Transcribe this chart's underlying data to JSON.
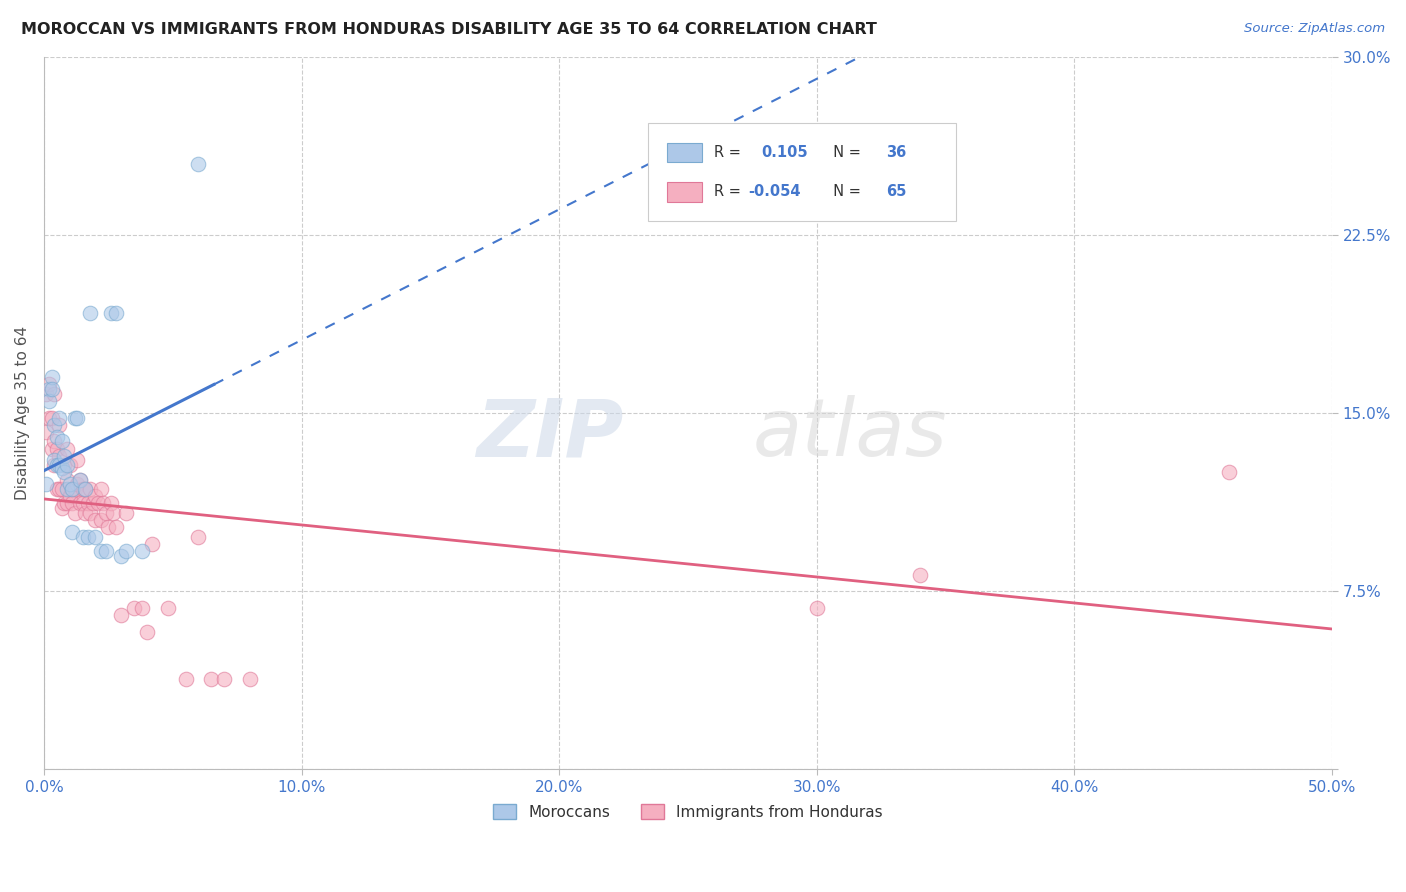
{
  "title": "MOROCCAN VS IMMIGRANTS FROM HONDURAS DISABILITY AGE 35 TO 64 CORRELATION CHART",
  "source": "Source: ZipAtlas.com",
  "ylabel": "Disability Age 35 to 64",
  "xlim": [
    0.0,
    0.5
  ],
  "ylim": [
    0.0,
    0.3
  ],
  "xticks": [
    0.0,
    0.1,
    0.2,
    0.3,
    0.4,
    0.5
  ],
  "xticklabels": [
    "0.0%",
    "10.0%",
    "20.0%",
    "30.0%",
    "40.0%",
    "50.0%"
  ],
  "yticks": [
    0.0,
    0.075,
    0.15,
    0.225,
    0.3
  ],
  "yticklabels": [
    "",
    "7.5%",
    "15.0%",
    "22.5%",
    "30.0%"
  ],
  "moroccan_color": "#adc8e8",
  "honduran_color": "#f5afc0",
  "moroccan_edge": "#7aaad0",
  "honduran_edge": "#e07898",
  "trend_moroccan_color": "#4477cc",
  "trend_honduran_color": "#e06080",
  "legend_R_moroccan": "0.105",
  "legend_N_moroccan": "36",
  "legend_R_honduran": "-0.054",
  "legend_N_honduran": "65",
  "moroccan_x": [
    0.001,
    0.002,
    0.002,
    0.003,
    0.003,
    0.004,
    0.004,
    0.005,
    0.005,
    0.006,
    0.006,
    0.007,
    0.007,
    0.008,
    0.008,
    0.009,
    0.009,
    0.01,
    0.011,
    0.011,
    0.012,
    0.013,
    0.014,
    0.015,
    0.016,
    0.017,
    0.018,
    0.02,
    0.022,
    0.024,
    0.026,
    0.028,
    0.03,
    0.032,
    0.038,
    0.06
  ],
  "moroccan_y": [
    0.12,
    0.16,
    0.155,
    0.165,
    0.16,
    0.13,
    0.145,
    0.128,
    0.14,
    0.128,
    0.148,
    0.127,
    0.138,
    0.125,
    0.132,
    0.118,
    0.128,
    0.12,
    0.1,
    0.118,
    0.148,
    0.148,
    0.122,
    0.098,
    0.118,
    0.098,
    0.192,
    0.098,
    0.092,
    0.092,
    0.192,
    0.192,
    0.09,
    0.092,
    0.092,
    0.255
  ],
  "honduran_x": [
    0.001,
    0.001,
    0.002,
    0.002,
    0.003,
    0.003,
    0.004,
    0.004,
    0.004,
    0.005,
    0.005,
    0.006,
    0.006,
    0.006,
    0.007,
    0.007,
    0.008,
    0.008,
    0.009,
    0.009,
    0.009,
    0.01,
    0.01,
    0.011,
    0.011,
    0.012,
    0.012,
    0.013,
    0.013,
    0.014,
    0.014,
    0.015,
    0.015,
    0.016,
    0.016,
    0.017,
    0.018,
    0.018,
    0.019,
    0.02,
    0.02,
    0.021,
    0.022,
    0.022,
    0.023,
    0.024,
    0.025,
    0.026,
    0.027,
    0.028,
    0.03,
    0.032,
    0.035,
    0.038,
    0.04,
    0.042,
    0.048,
    0.055,
    0.06,
    0.065,
    0.07,
    0.08,
    0.3,
    0.34,
    0.46
  ],
  "honduran_y": [
    0.142,
    0.158,
    0.148,
    0.162,
    0.135,
    0.148,
    0.128,
    0.138,
    0.158,
    0.118,
    0.135,
    0.118,
    0.132,
    0.145,
    0.11,
    0.118,
    0.112,
    0.128,
    0.112,
    0.122,
    0.135,
    0.115,
    0.128,
    0.112,
    0.118,
    0.108,
    0.118,
    0.12,
    0.13,
    0.112,
    0.122,
    0.112,
    0.118,
    0.108,
    0.118,
    0.112,
    0.108,
    0.118,
    0.112,
    0.105,
    0.115,
    0.112,
    0.105,
    0.118,
    0.112,
    0.108,
    0.102,
    0.112,
    0.108,
    0.102,
    0.065,
    0.108,
    0.068,
    0.068,
    0.058,
    0.095,
    0.068,
    0.038,
    0.098,
    0.038,
    0.038,
    0.038,
    0.068,
    0.082,
    0.125
  ],
  "watermark_zip": "ZIP",
  "watermark_atlas": "atlas",
  "background_color": "#ffffff",
  "grid_color": "#cccccc",
  "tick_color": "#4477cc"
}
